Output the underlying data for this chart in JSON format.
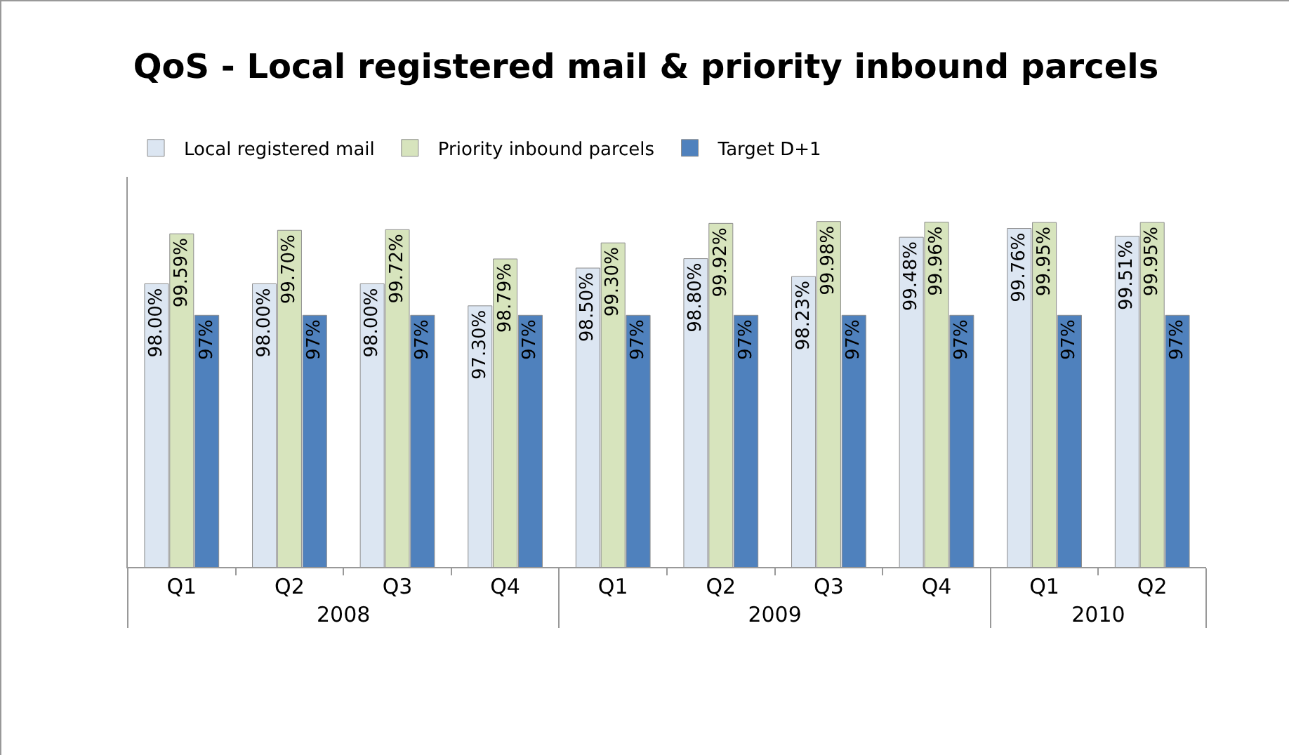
{
  "chart_data": {
    "type": "bar",
    "title": "QoS - Local registered mail & priority inbound parcels",
    "categories": [
      "Q1",
      "Q2",
      "Q3",
      "Q4",
      "Q1",
      "Q2",
      "Q3",
      "Q4",
      "Q1",
      "Q2"
    ],
    "annotations": [
      "2008",
      "2009",
      "2010"
    ],
    "series": [
      {
        "name": "Local registered mail",
        "color": "#dce6f2",
        "values": [
          98.0,
          98.0,
          98.0,
          97.3,
          98.5,
          98.8,
          98.23,
          99.48,
          99.76,
          99.51
        ],
        "value_labels": [
          "98.00%",
          "98.00%",
          "98.00%",
          "97.30%",
          "98.50%",
          "98.80%",
          "98.23%",
          "99.48%",
          "99.76%",
          "99.51%"
        ]
      },
      {
        "name": "Priority inbound parcels",
        "color": "#d7e4bd",
        "values": [
          99.59,
          99.7,
          99.72,
          98.79,
          99.3,
          99.92,
          99.98,
          99.96,
          99.95,
          99.95
        ],
        "value_labels": [
          "99.59%",
          "99.70%",
          "99.72%",
          "98.79%",
          "99.30%",
          "99.92%",
          "99.98%",
          "99.96%",
          "99.95%",
          "99.95%"
        ]
      },
      {
        "name": "Target D+1",
        "color": "#4f81bd",
        "values": [
          97,
          97,
          97,
          97,
          97,
          97,
          97,
          97,
          97,
          97
        ],
        "value_labels": [
          "97%",
          "97%",
          "97%",
          "97%",
          "97%",
          "97%",
          "97%",
          "97%",
          "97%",
          "97%"
        ]
      }
    ],
    "ylim": [
      89,
      101.4
    ],
    "tick_labels": "x",
    "legend": "top left"
  }
}
